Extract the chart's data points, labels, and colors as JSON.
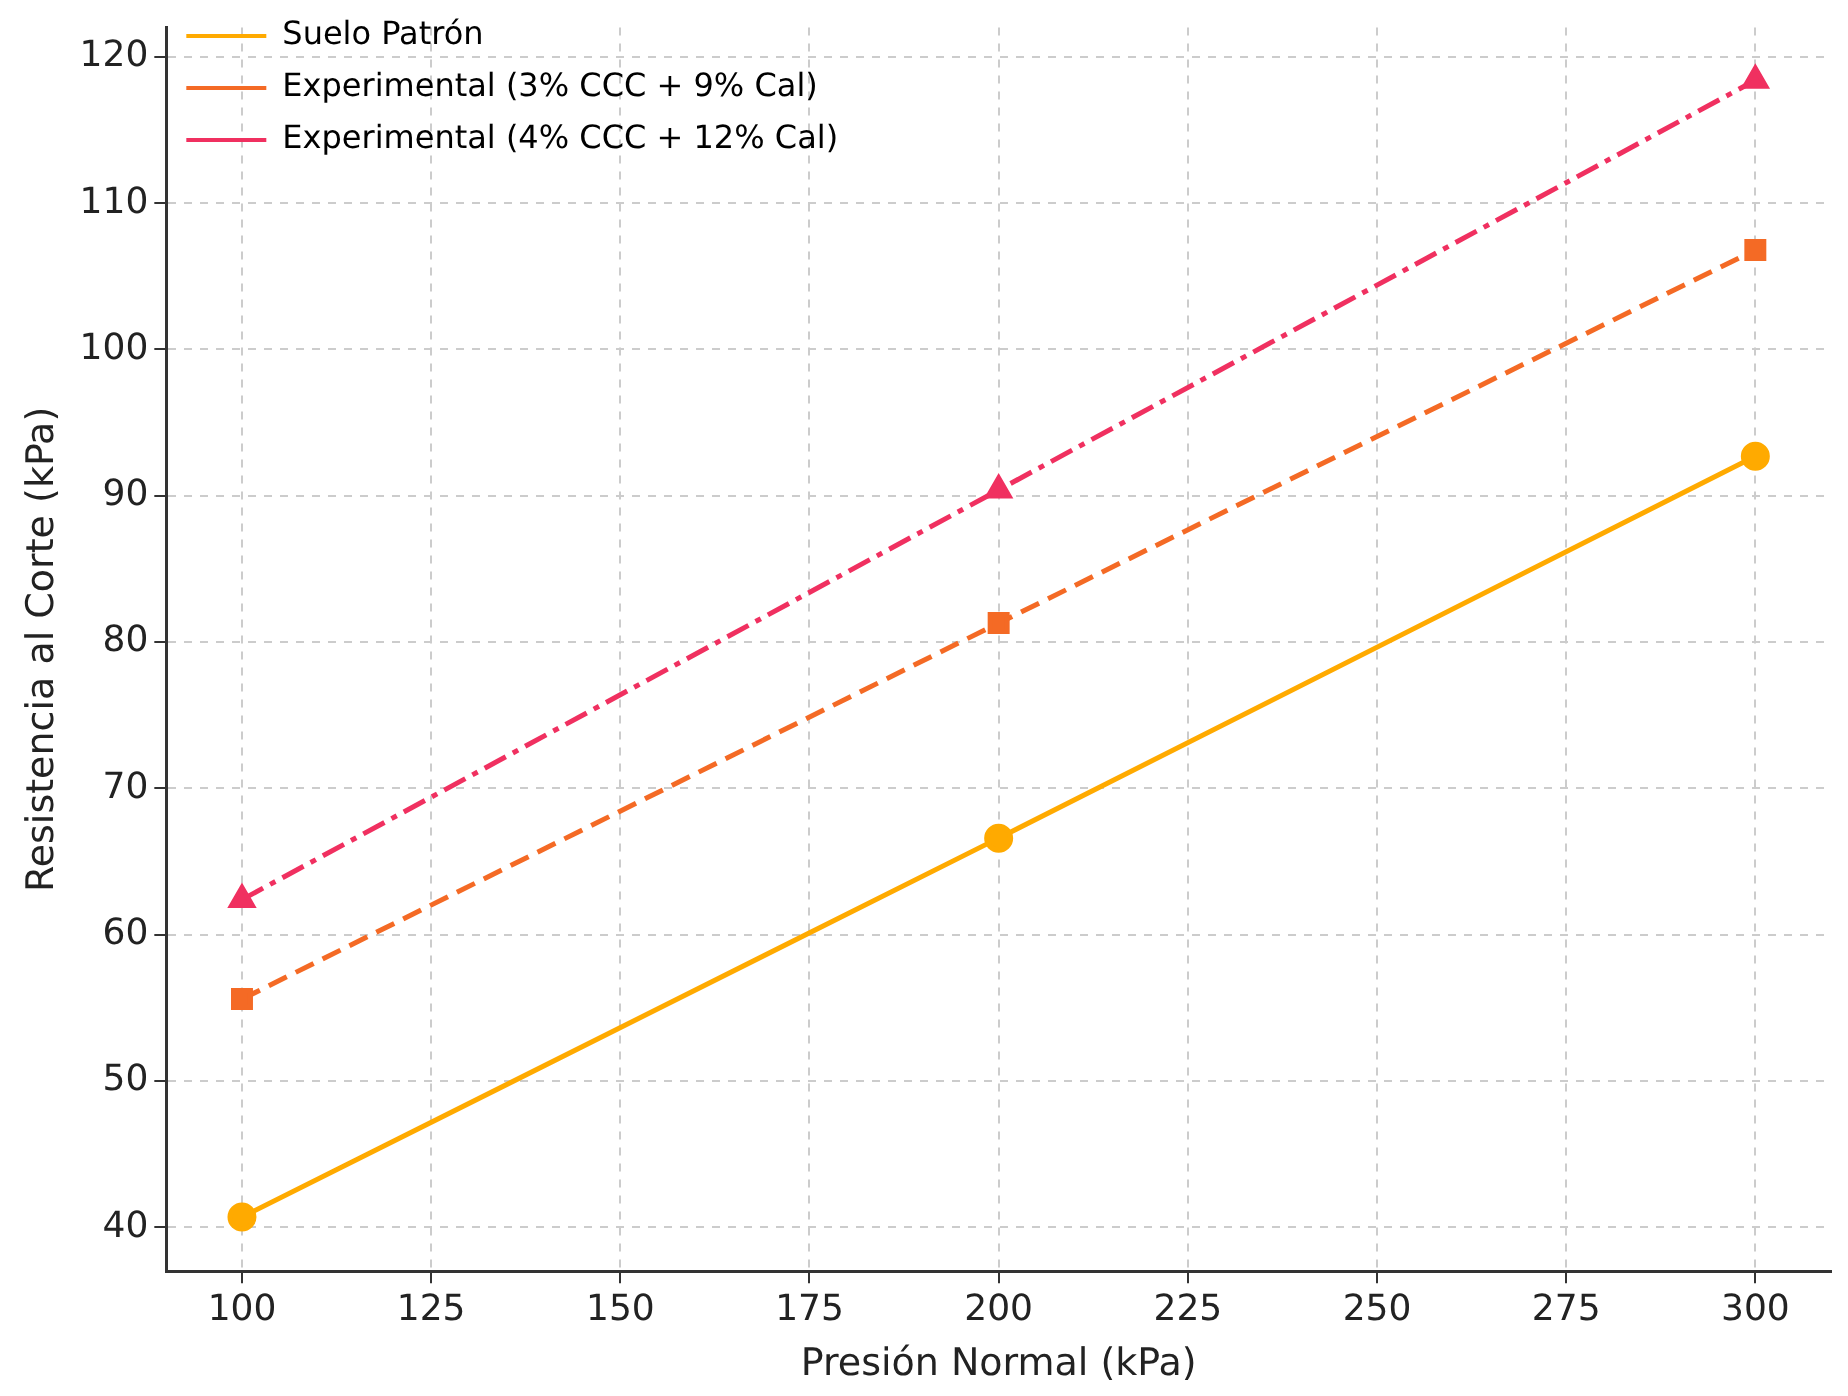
{
  "chart_data": {
    "type": "line",
    "xlabel": "Presión Normal (kPa)",
    "ylabel": "Resistencia al Corte (kPa)",
    "x": [
      100,
      200,
      300
    ],
    "series": [
      {
        "name": "Suelo Patrón",
        "color": "#ffaa00",
        "values": [
          40.7,
          66.6,
          92.7
        ],
        "marker": "circle",
        "line_style": "solid"
      },
      {
        "name": "Experimental (3% CCC + 9% Cal)",
        "color": "#f46a25",
        "values": [
          55.6,
          81.3,
          106.8
        ],
        "marker": "square",
        "line_style": "dashed"
      },
      {
        "name": "Experimental (4% CCC + 12% Cal)",
        "color": "#f03060",
        "values": [
          62.4,
          90.4,
          118.4
        ],
        "marker": "triangle",
        "line_style": "dashdot"
      }
    ],
    "xlim": [
      90,
      310
    ],
    "xticks": [
      100,
      125,
      150,
      175,
      200,
      225,
      250,
      275,
      300
    ],
    "ylim": [
      37,
      122
    ],
    "yticks": [
      40,
      50,
      60,
      70,
      80,
      90,
      100,
      110,
      120
    ],
    "grid": true,
    "legend": "top left"
  }
}
